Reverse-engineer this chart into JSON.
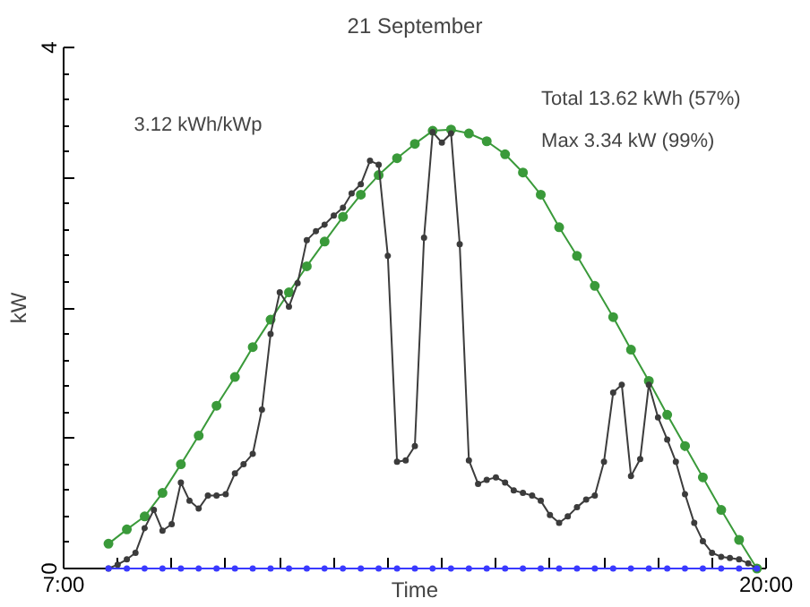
{
  "chart_data": {
    "type": "line",
    "title": "21 September",
    "xlabel": "Time",
    "ylabel": "kW",
    "annotations": [
      "3.12 kWh/kWp",
      "Total 13.62 kWh (57%)",
      "Max 3.34 kW (99%)"
    ],
    "xlim": [
      7,
      20
    ],
    "ylim": [
      0,
      4
    ],
    "xticks": [
      {
        "value": 7,
        "label": "7:00"
      },
      {
        "value": 8,
        "label": null
      },
      {
        "value": 9,
        "label": null
      },
      {
        "value": 10,
        "label": null
      },
      {
        "value": 11,
        "label": null
      },
      {
        "value": 12,
        "label": null
      },
      {
        "value": 13,
        "label": null
      },
      {
        "value": 14,
        "label": null
      },
      {
        "value": 15,
        "label": null
      },
      {
        "value": 16,
        "label": null
      },
      {
        "value": 17,
        "label": null
      },
      {
        "value": 18,
        "label": null
      },
      {
        "value": 19,
        "label": null
      },
      {
        "value": 20,
        "label": "20:00"
      }
    ],
    "yticks": [
      0,
      {
        "value": 1,
        "label": null
      },
      {
        "value": 2,
        "label": null
      },
      {
        "value": 3,
        "label": null
      },
      4
    ],
    "grid": false,
    "marker": "circle",
    "line_style": "solid",
    "series": [
      {
        "color": "#3a9a3a",
        "x": [
          7.83,
          8.17,
          8.5,
          8.83,
          9.17,
          9.5,
          9.83,
          10.17,
          10.5,
          10.83,
          11.17,
          11.5,
          11.83,
          12.17,
          12.5,
          12.83,
          13.17,
          13.5,
          13.83,
          14.17,
          14.5,
          14.83,
          15.17,
          15.5,
          15.83,
          16.17,
          16.5,
          16.83,
          17.17,
          17.5,
          17.83,
          18.17,
          18.5,
          18.83,
          19.17,
          19.5,
          19.83
        ],
        "values": [
          0.19,
          0.3,
          0.4,
          0.58,
          0.8,
          1.02,
          1.25,
          1.47,
          1.7,
          1.91,
          2.12,
          2.32,
          2.51,
          2.7,
          2.87,
          3.02,
          3.15,
          3.26,
          3.36,
          3.37,
          3.34,
          3.28,
          3.18,
          3.04,
          2.87,
          2.62,
          2.4,
          2.17,
          1.93,
          1.68,
          1.44,
          1.18,
          0.94,
          0.7,
          0.45,
          0.22,
          0.0
        ]
      },
      {
        "color": "#3c3c3c",
        "x": [
          7.83,
          8.0,
          8.17,
          8.33,
          8.5,
          8.67,
          8.83,
          9.0,
          9.17,
          9.33,
          9.5,
          9.67,
          9.83,
          10.0,
          10.17,
          10.33,
          10.5,
          10.67,
          10.83,
          11.0,
          11.17,
          11.33,
          11.5,
          11.67,
          11.83,
          12.0,
          12.17,
          12.33,
          12.5,
          12.67,
          12.83,
          13.0,
          13.17,
          13.33,
          13.5,
          13.67,
          13.83,
          14.0,
          14.17,
          14.33,
          14.5,
          14.67,
          14.83,
          15.0,
          15.17,
          15.33,
          15.5,
          15.67,
          15.83,
          16.0,
          16.17,
          16.33,
          16.5,
          16.67,
          16.83,
          17.0,
          17.17,
          17.33,
          17.5,
          17.67,
          17.83,
          18.0,
          18.17,
          18.33,
          18.5,
          18.67,
          18.83,
          19.0,
          19.17,
          19.33,
          19.5,
          19.67,
          19.83
        ],
        "values": [
          0.0,
          0.03,
          0.07,
          0.12,
          0.31,
          0.45,
          0.29,
          0.34,
          0.66,
          0.52,
          0.46,
          0.56,
          0.56,
          0.57,
          0.73,
          0.8,
          0.88,
          1.22,
          1.8,
          2.12,
          2.01,
          2.19,
          2.52,
          2.59,
          2.64,
          2.71,
          2.77,
          2.88,
          2.95,
          3.13,
          3.1,
          2.4,
          0.82,
          0.83,
          0.94,
          2.54,
          3.35,
          3.27,
          3.34,
          2.49,
          0.83,
          0.65,
          0.68,
          0.7,
          0.66,
          0.6,
          0.58,
          0.56,
          0.52,
          0.41,
          0.35,
          0.4,
          0.47,
          0.53,
          0.56,
          0.82,
          1.35,
          1.41,
          0.71,
          0.84,
          1.41,
          1.16,
          0.99,
          0.82,
          0.57,
          0.35,
          0.21,
          0.12,
          0.09,
          0.08,
          0.07,
          0.04,
          0.0
        ]
      },
      {
        "color": "#3a3aff",
        "x": [
          7.83,
          8.17,
          8.5,
          8.83,
          9.17,
          9.5,
          9.83,
          10.17,
          10.5,
          10.83,
          11.17,
          11.5,
          11.83,
          12.17,
          12.5,
          12.83,
          13.17,
          13.5,
          13.83,
          14.17,
          14.5,
          14.83,
          15.17,
          15.5,
          15.83,
          16.17,
          16.5,
          16.83,
          17.17,
          17.5,
          17.83,
          18.17,
          18.5,
          18.83,
          19.17,
          19.5,
          19.83
        ],
        "values": [
          0,
          0,
          0,
          0,
          0,
          0,
          0,
          0,
          0,
          0,
          0,
          0,
          0,
          0,
          0,
          0,
          0,
          0,
          0,
          0,
          0,
          0,
          0,
          0,
          0,
          0,
          0,
          0,
          0,
          0,
          0,
          0,
          0,
          0,
          0,
          0,
          0
        ]
      }
    ]
  }
}
